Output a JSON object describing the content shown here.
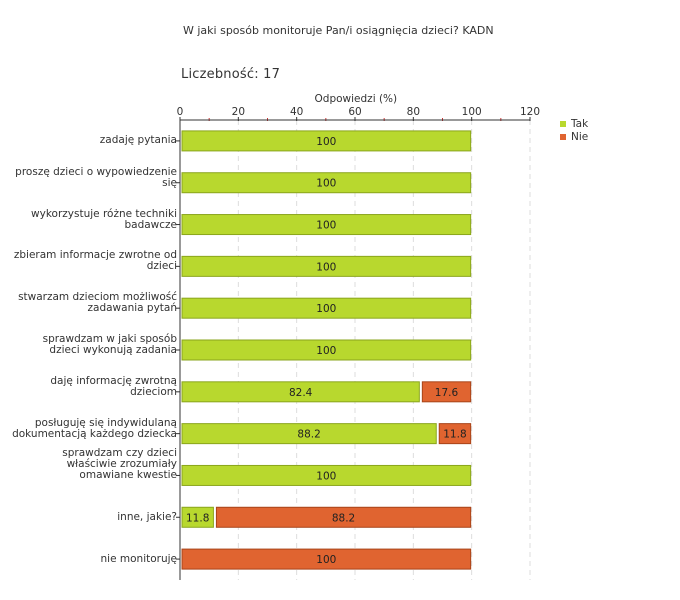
{
  "title": "W jaki sposób monitoruje Pan/i osiągnięcia dzieci?  KADN",
  "count_label": "Liczebność:",
  "count_value": "17",
  "chart_data": {
    "type": "bar",
    "orientation": "horizontal",
    "stacked": true,
    "xlabel": "Odpowiedzi (%)",
    "xlim": [
      0,
      120
    ],
    "xticks": [
      "0",
      "20",
      "40",
      "60",
      "80",
      "100",
      "120"
    ],
    "grid": true,
    "legend_position": "top-right",
    "categories": [
      "zadaję pytania",
      "proszę dzieci o wypowiedzenie się",
      "wykorzystuje różne techniki badawcze",
      "zbieram informacje zwrotne od dzieci",
      "stwarzam dzieciom możliwość zadawania pytań",
      "sprawdzam w jaki sposób dzieci wykonują zadania",
      "daję informację zwrotną dzieciom",
      "posługuję się indywidulaną dokumentacją każdego dziecka",
      "sprawdzam czy dzieci właściwie zrozumiały omawiane kwestie",
      "inne, jakie?",
      "nie monitoruję"
    ],
    "category_lines": [
      [
        "zadaję pytania"
      ],
      [
        "proszę dzieci o wypowiedzenie",
        "się"
      ],
      [
        "wykorzystuje różne techniki",
        "badawcze"
      ],
      [
        "zbieram informacje zwrotne od",
        "dzieci"
      ],
      [
        "stwarzam dzieciom możliwość",
        "zadawania pytań"
      ],
      [
        "sprawdzam w jaki sposób",
        "dzieci wykonują zadania"
      ],
      [
        "daję informację zwrotną",
        "dzieciom"
      ],
      [
        "posługuję się indywidulaną",
        "dokumentacją każdego dziecka"
      ],
      [
        "sprawdzam czy dzieci",
        "właściwie zrozumiały",
        "omawiane kwestie"
      ],
      [
        "inne, jakie?"
      ],
      [
        "nie monitoruję"
      ]
    ],
    "series": [
      {
        "name": "Tak",
        "color": "#b8d82e",
        "stroke": "#8aa51c",
        "values": [
          100,
          100,
          100,
          100,
          100,
          100,
          82.4,
          88.2,
          100,
          11.8,
          0
        ],
        "labels": [
          "100",
          "100",
          "100",
          "100",
          "100",
          "100",
          "82.4",
          "88.2",
          "100",
          "11.8",
          ""
        ]
      },
      {
        "name": "Nie",
        "color": "#e06430",
        "stroke": "#a84419",
        "values": [
          0,
          0,
          0,
          0,
          0,
          0,
          17.6,
          11.8,
          0,
          88.2,
          100
        ],
        "labels": [
          "",
          "",
          "",
          "",
          "",
          "",
          "17.6",
          "11.8",
          "",
          "88.2",
          "100"
        ]
      }
    ]
  }
}
